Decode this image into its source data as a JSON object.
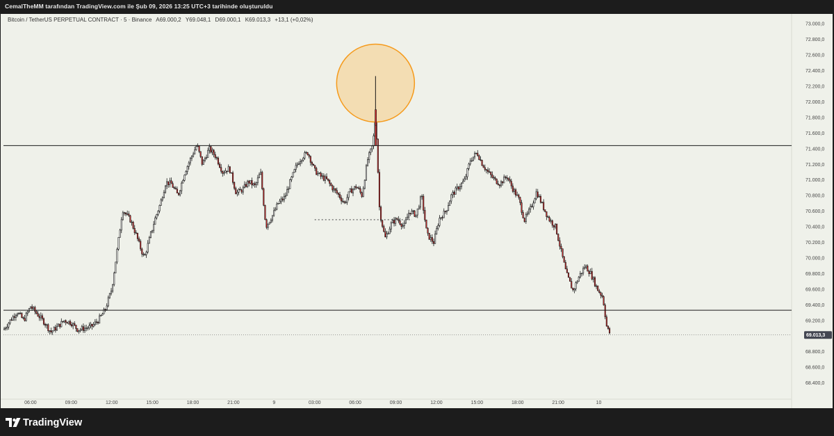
{
  "header": {
    "caption": "CemalTheMM tarafından TradingView.com ile Şub 09, 2026 13:25 UTC+3 tarihinde oluşturuldu"
  },
  "legend": {
    "symbol": "Bitcoin / TetherUS PERPETUAL CONTRACT · 5 · Binance",
    "open": "A69.000,2",
    "high": "Y69.048,1",
    "low": "D69.000,1",
    "close": "K69.013,3",
    "change": "+13,1 (+0,02%)"
  },
  "brand": {
    "name": "TradingView"
  },
  "colors": {
    "background": "#eff1ea",
    "frame": "#1c1c1c",
    "candle_up": "#ffffff",
    "candle_down": "#d32f2f",
    "candle_outline": "#1a1a1a",
    "circle_fill": "#f3d9a9",
    "circle_stroke": "#f59a1b"
  },
  "chart_data": {
    "type": "candlestick",
    "title": "Bitcoin / TetherUS PERPETUAL CONTRACT",
    "interval": "5",
    "exchange": "Binance",
    "y_axis": {
      "ylim": [
        68200,
        73100
      ],
      "tick_labels": [
        "73.000,0",
        "72.800,0",
        "72.600,0",
        "72.400,0",
        "72.200,0",
        "72.000,0",
        "71.800,0",
        "71.600,0",
        "71.400,0",
        "71.200,0",
        "71.000,0",
        "70.800,0",
        "70.600,0",
        "70.400,0",
        "70.200,0",
        "70.000,0",
        "69.800,0",
        "69.600,0",
        "69.400,0",
        "69.200,0",
        "69.000,0",
        "68.800,0",
        "68.600,0",
        "68.400,0"
      ],
      "tick_values": [
        73000,
        72800,
        72600,
        72400,
        72200,
        72000,
        71800,
        71600,
        71400,
        71200,
        71000,
        70800,
        70600,
        70400,
        70200,
        70000,
        69800,
        69600,
        69400,
        69200,
        69000,
        68800,
        68600,
        68400
      ],
      "position": "right"
    },
    "x_axis": {
      "range_hours": [
        4,
        62.2
      ],
      "tick_labels": [
        "06:00",
        "09:00",
        "12:00",
        "15:00",
        "18:00",
        "21:00",
        "9",
        "03:00",
        "06:00",
        "09:00",
        "12:00",
        "15:00",
        "18:00",
        "21:00",
        "10"
      ],
      "tick_hours": [
        6,
        9,
        12,
        15,
        18,
        21,
        24,
        27,
        30,
        33,
        36,
        39,
        42,
        45,
        48
      ]
    },
    "price_path": [
      [
        4.0,
        69080
      ],
      [
        4.5,
        69200
      ],
      [
        5.0,
        69310
      ],
      [
        5.5,
        69200
      ],
      [
        6.0,
        69380
      ],
      [
        6.5,
        69280
      ],
      [
        7.0,
        69180
      ],
      [
        7.5,
        69050
      ],
      [
        8.0,
        69120
      ],
      [
        8.5,
        69200
      ],
      [
        9.0,
        69170
      ],
      [
        9.5,
        69080
      ],
      [
        10.0,
        69100
      ],
      [
        10.5,
        69120
      ],
      [
        11.0,
        69200
      ],
      [
        11.5,
        69330
      ],
      [
        12.0,
        69600
      ],
      [
        12.4,
        70100
      ],
      [
        12.8,
        70620
      ],
      [
        13.1,
        70550
      ],
      [
        13.4,
        70480
      ],
      [
        13.8,
        70300
      ],
      [
        14.1,
        70140
      ],
      [
        14.4,
        70000
      ],
      [
        14.8,
        70250
      ],
      [
        15.2,
        70500
      ],
      [
        15.6,
        70700
      ],
      [
        16.0,
        70970
      ],
      [
        16.4,
        70950
      ],
      [
        16.9,
        70800
      ],
      [
        17.4,
        71100
      ],
      [
        17.9,
        71300
      ],
      [
        18.3,
        71450
      ],
      [
        18.7,
        71200
      ],
      [
        19.2,
        71400
      ],
      [
        19.7,
        71300
      ],
      [
        20.2,
        71100
      ],
      [
        20.7,
        71150
      ],
      [
        21.2,
        70830
      ],
      [
        21.7,
        70880
      ],
      [
        22.1,
        70980
      ],
      [
        22.6,
        70920
      ],
      [
        23.0,
        71100
      ],
      [
        23.4,
        70400
      ],
      [
        23.9,
        70550
      ],
      [
        24.3,
        70700
      ],
      [
        24.8,
        70780
      ],
      [
        25.2,
        70980
      ],
      [
        25.7,
        71200
      ],
      [
        26.1,
        71300
      ],
      [
        26.5,
        71350
      ],
      [
        27.0,
        71120
      ],
      [
        27.4,
        71050
      ],
      [
        27.9,
        71000
      ],
      [
        28.3,
        70900
      ],
      [
        28.8,
        70800
      ],
      [
        29.2,
        70700
      ],
      [
        29.6,
        70850
      ],
      [
        30.1,
        70920
      ],
      [
        30.5,
        70800
      ],
      [
        30.9,
        71250
      ],
      [
        31.3,
        71450
      ],
      [
        31.5,
        71820
      ],
      [
        31.6,
        71440
      ],
      [
        31.8,
        70600
      ],
      [
        32.2,
        70250
      ],
      [
        32.7,
        70450
      ],
      [
        33.1,
        70500
      ],
      [
        33.6,
        70400
      ],
      [
        34.0,
        70600
      ],
      [
        34.5,
        70550
      ],
      [
        34.9,
        70800
      ],
      [
        35.3,
        70300
      ],
      [
        35.8,
        70200
      ],
      [
        36.2,
        70500
      ],
      [
        36.7,
        70600
      ],
      [
        37.1,
        70800
      ],
      [
        37.6,
        70900
      ],
      [
        38.1,
        71000
      ],
      [
        38.5,
        71250
      ],
      [
        39.0,
        71350
      ],
      [
        39.4,
        71200
      ],
      [
        39.8,
        71100
      ],
      [
        40.3,
        71000
      ],
      [
        40.7,
        70950
      ],
      [
        41.2,
        71050
      ],
      [
        41.6,
        70900
      ],
      [
        42.1,
        70750
      ],
      [
        42.5,
        70480
      ],
      [
        43.0,
        70650
      ],
      [
        43.4,
        70850
      ],
      [
        43.9,
        70650
      ],
      [
        44.3,
        70500
      ],
      [
        44.8,
        70400
      ],
      [
        45.2,
        70100
      ],
      [
        45.6,
        69800
      ],
      [
        46.1,
        69580
      ],
      [
        46.5,
        69750
      ],
      [
        47.0,
        69900
      ],
      [
        47.4,
        69800
      ],
      [
        47.9,
        69600
      ],
      [
        48.3,
        69500
      ],
      [
        48.6,
        69100
      ],
      [
        48.9,
        69013
      ]
    ],
    "spike": {
      "hour": 31.5,
      "high": 72330,
      "low": 71440
    },
    "horizontal_lines": [
      {
        "price": 71440,
        "style": "solid"
      },
      {
        "price": 69330,
        "style": "solid"
      },
      {
        "price": 70490,
        "style": "dotted",
        "from_hour": 27.0,
        "to_hour": 34.2
      },
      {
        "price": 69013.3,
        "style": "faint-dotted"
      }
    ],
    "annotation_circle": {
      "hour": 31.5,
      "price": 72240
    },
    "last_price": {
      "value": 69013.3,
      "label": "69.013,3"
    }
  }
}
